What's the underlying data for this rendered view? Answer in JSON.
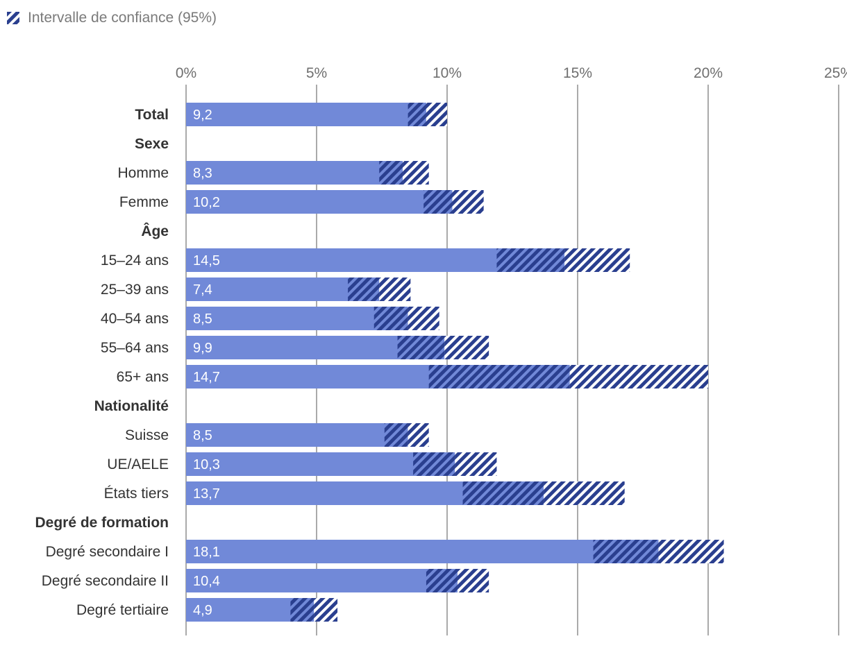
{
  "legend": {
    "label": "Intervalle de confiance (95%)",
    "icon": "hatched-swatch-icon"
  },
  "colors": {
    "bar": "#7189d8",
    "hatch": "#2a3f8f",
    "grid": "#555555",
    "text": "#333333",
    "tick": "#6f6f6f"
  },
  "chart_data": {
    "type": "bar",
    "orientation": "horizontal",
    "title": "",
    "xlabel": "",
    "ylabel": "",
    "xlim": [
      0,
      25
    ],
    "ticks": [
      "0%",
      "5%",
      "10%",
      "15%",
      "20%",
      "25%"
    ],
    "tick_values": [
      0,
      5,
      10,
      15,
      20,
      25
    ],
    "grid": true,
    "legend_position": "top-left",
    "rows": [
      {
        "label": "Total",
        "group": true,
        "value": 9.2,
        "display": "9,2",
        "ci_low": 8.5,
        "ci_high": 10.0
      },
      {
        "label": "Sexe",
        "group": true
      },
      {
        "label": "Homme",
        "value": 8.3,
        "display": "8,3",
        "ci_low": 7.4,
        "ci_high": 9.3
      },
      {
        "label": "Femme",
        "value": 10.2,
        "display": "10,2",
        "ci_low": 9.1,
        "ci_high": 11.4
      },
      {
        "label": "Âge",
        "group": true
      },
      {
        "label": "15–24 ans",
        "value": 14.5,
        "display": "14,5",
        "ci_low": 11.9,
        "ci_high": 17.0
      },
      {
        "label": "25–39 ans",
        "value": 7.4,
        "display": "7,4",
        "ci_low": 6.2,
        "ci_high": 8.6
      },
      {
        "label": "40–54 ans",
        "value": 8.5,
        "display": "8,5",
        "ci_low": 7.2,
        "ci_high": 9.7
      },
      {
        "label": "55–64 ans",
        "value": 9.9,
        "display": "9,9",
        "ci_low": 8.1,
        "ci_high": 11.6
      },
      {
        "label": "65+ ans",
        "value": 14.7,
        "display": "14,7",
        "ci_low": 9.3,
        "ci_high": 20.0
      },
      {
        "label": "Nationalité",
        "group": true
      },
      {
        "label": "Suisse",
        "value": 8.5,
        "display": "8,5",
        "ci_low": 7.6,
        "ci_high": 9.3
      },
      {
        "label": "UE/AELE",
        "value": 10.3,
        "display": "10,3",
        "ci_low": 8.7,
        "ci_high": 11.9
      },
      {
        "label": "États tiers",
        "value": 13.7,
        "display": "13,7",
        "ci_low": 10.6,
        "ci_high": 16.8
      },
      {
        "label": "Degré de formation",
        "group": true
      },
      {
        "label": "Degré secondaire I",
        "value": 18.1,
        "display": "18,1",
        "ci_low": 15.6,
        "ci_high": 20.6
      },
      {
        "label": "Degré secondaire II",
        "value": 10.4,
        "display": "10,4",
        "ci_low": 9.2,
        "ci_high": 11.6
      },
      {
        "label": "Degré tertiaire",
        "value": 4.9,
        "display": "4,9",
        "ci_low": 4.0,
        "ci_high": 5.8
      }
    ]
  }
}
